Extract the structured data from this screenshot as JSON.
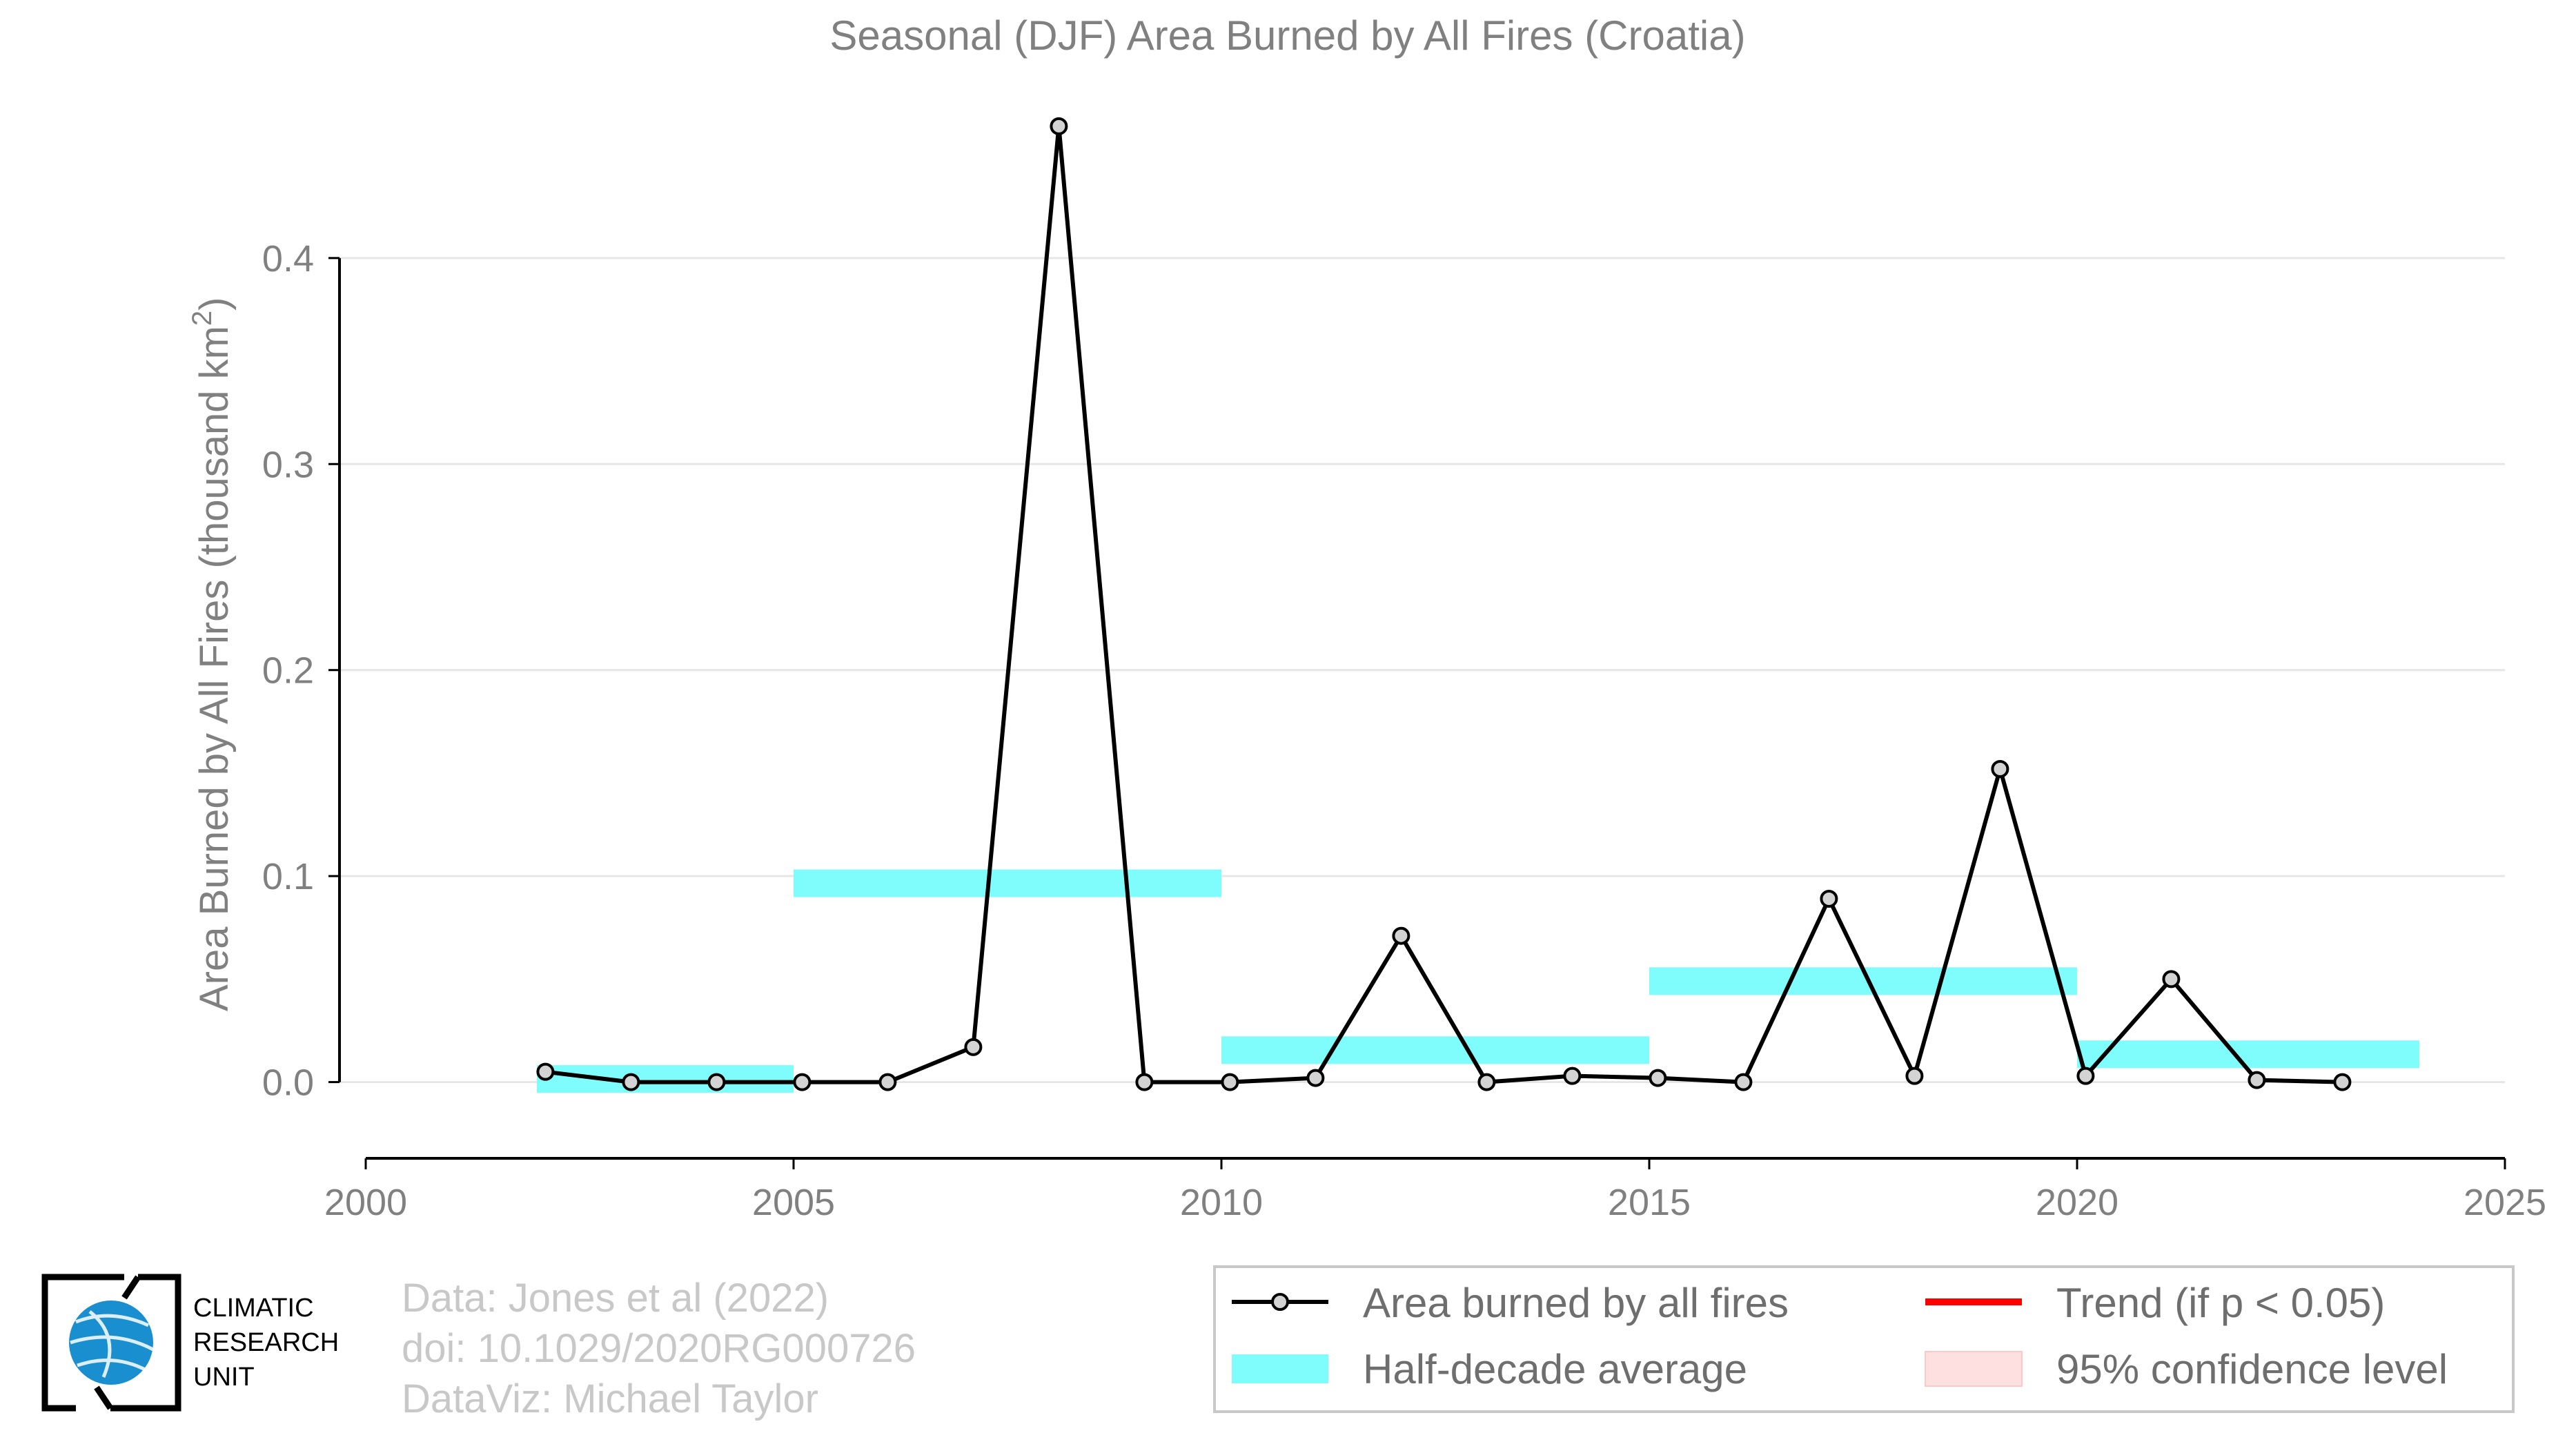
{
  "chart_data": {
    "type": "line",
    "title": "Seasonal (DJF) Area Burned by All Fires (Croatia)",
    "ylabel": "Area Burned by All Fires (thousand km",
    "ylabel_superscript": "2",
    "ylabel_suffix": ")",
    "xlim": [
      2000,
      2025
    ],
    "ylim": [
      -0.037,
      0.475
    ],
    "x_ticks": [
      2000,
      2005,
      2010,
      2015,
      2020,
      2025
    ],
    "x_tick_labels": [
      "2000",
      "2005",
      "2010",
      "2015",
      "2020",
      "2025"
    ],
    "y_ticks": [
      0.0,
      0.1,
      0.2,
      0.3,
      0.4
    ],
    "y_tick_labels": [
      "0.0",
      "0.1",
      "0.2",
      "0.3",
      "0.4"
    ],
    "grid": "horizontal",
    "series": [
      {
        "name": "Area burned by all fires",
        "color": "#000000",
        "marker_fill": "#d3d3d3",
        "x": [
          2002.1,
          2003.1,
          2004.1,
          2005.1,
          2006.1,
          2007.1,
          2008.1,
          2009.1,
          2010.1,
          2011.1,
          2012.1,
          2013.1,
          2014.1,
          2015.1,
          2016.1,
          2017.1,
          2018.1,
          2019.1,
          2020.1,
          2021.1,
          2022.1,
          2023.1
        ],
        "y": [
          0.005,
          0.0,
          0.0,
          0.0,
          0.0,
          0.017,
          0.464,
          0.0,
          0.0,
          0.002,
          0.071,
          0.0,
          0.003,
          0.002,
          0.0,
          0.089,
          0.003,
          0.152,
          0.003,
          0.05,
          0.001,
          0.0
        ]
      }
    ],
    "half_decade_averages": {
      "name": "Half-decade average",
      "color": "#7ffcfc",
      "segments": [
        {
          "x_start": 2002,
          "x_end": 2005,
          "value": 0.0015
        },
        {
          "x_start": 2005,
          "x_end": 2010,
          "value": 0.0965
        },
        {
          "x_start": 2010,
          "x_end": 2015,
          "value": 0.0155
        },
        {
          "x_start": 2015,
          "x_end": 2020,
          "value": 0.049
        },
        {
          "x_start": 2020,
          "x_end": 2024,
          "value": 0.0135
        }
      ]
    },
    "legend": {
      "placement": "bottom-right",
      "items": [
        {
          "label": "Area burned by all fires",
          "kind": "line-marker",
          "color": "#000000"
        },
        {
          "label": "Trend (if p < 0.05)",
          "kind": "line",
          "color": "#ff0000"
        },
        {
          "label": "Half-decade average",
          "kind": "band",
          "color": "#7ffcfc"
        },
        {
          "label": "95% confidence level",
          "kind": "patch",
          "color": "#ffe0e0"
        }
      ]
    }
  },
  "credits": {
    "line1": "Data: Jones et al (2022)",
    "line2": "doi: 10.1029/2020RG000726",
    "line3": "DataViz: Michael Taylor"
  },
  "logo": {
    "line1": "CLIMATIC",
    "line2": "RESEARCH",
    "line3": "UNIT",
    "globe_color": "#1a8fd0"
  }
}
